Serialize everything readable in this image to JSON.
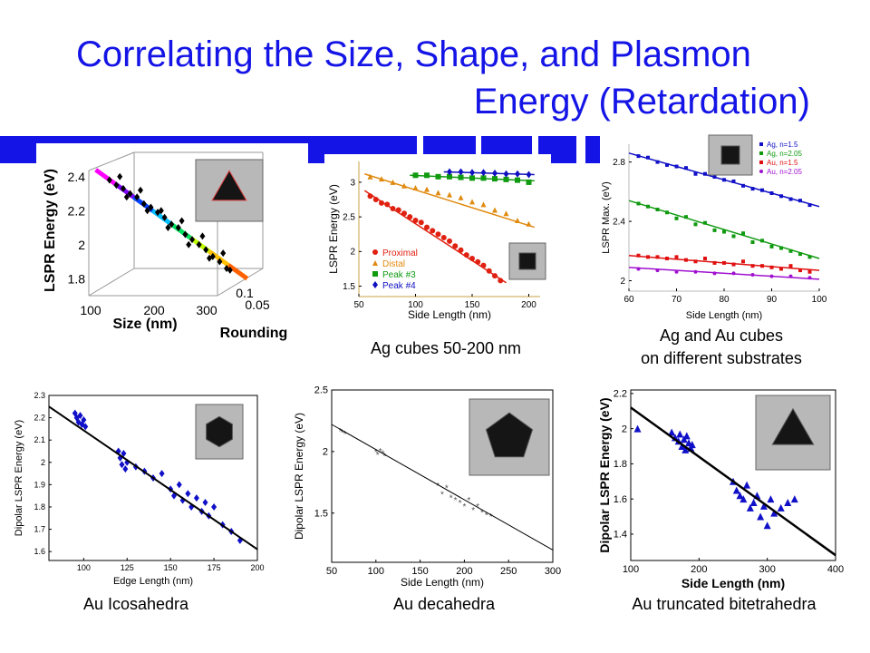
{
  "slide": {
    "title_line1": "Correlating the Size, Shape, and Plasmon",
    "title_line2": "Energy (Retardation)",
    "accent": "#1414e6"
  },
  "captions": {
    "ag_cubes": "Ag cubes 50-200 nm",
    "substrates_line1": "Ag and Au cubes",
    "substrates_line2": "on different substrates",
    "icosahedra": "Au Icosahedra",
    "decahedra": "Au decahedra",
    "bitetrahedra": "Au truncated bitetrahedra"
  },
  "chart_data": [
    {
      "id": "p1",
      "type": "scatter",
      "ylabel": "LSPR Energy (eV)",
      "xlabel": "Size (nm)",
      "zlabel": "Rounding",
      "xticks": [
        "100",
        "200",
        "300"
      ],
      "yticks": [
        "1.8",
        "2",
        "2.2",
        "2.4"
      ],
      "zticks": [
        "0.05",
        "0.1"
      ],
      "xlim": [
        100,
        350
      ],
      "ylim": [
        1.7,
        2.5
      ],
      "series": [
        {
          "name": "",
          "color": "#000000",
          "marker": "diamond",
          "x": [
            130,
            140,
            150,
            160,
            170,
            180,
            190,
            200,
            210,
            220,
            230,
            240,
            250,
            260,
            270,
            280,
            290,
            300,
            145,
            175,
            205,
            235,
            265,
            295,
            155,
            185,
            215,
            245,
            275,
            305
          ],
          "y": [
            2.38,
            2.35,
            2.33,
            2.3,
            2.28,
            2.24,
            2.22,
            2.19,
            2.16,
            2.12,
            2.1,
            2.06,
            2.03,
            2.0,
            1.97,
            1.93,
            1.9,
            1.86,
            2.4,
            2.32,
            2.2,
            2.14,
            2.05,
            1.95,
            2.28,
            2.2,
            2.1,
            2.0,
            1.92,
            1.85
          ]
        }
      ],
      "fit": {
        "x": [
          110,
          330
        ],
        "y": [
          2.44,
          1.8
        ]
      }
    },
    {
      "id": "p2",
      "type": "scatter",
      "ylabel": "LSPR Energy (eV)",
      "xlabel": "Side Length (nm)",
      "xticks": [
        50,
        100,
        150,
        200
      ],
      "yticks": [
        1.5,
        2,
        2.5,
        3
      ],
      "xlim": [
        50,
        210
      ],
      "ylim": [
        1.35,
        3.3
      ],
      "legend": {
        "placement": "bottom-left",
        "entries": [
          "Proximal",
          "Distal",
          "Peak #3",
          "Peak #4"
        ]
      },
      "series": [
        {
          "name": "Proximal",
          "color": "#e02010",
          "marker": "circle",
          "x": [
            60,
            65,
            70,
            75,
            80,
            85,
            90,
            95,
            100,
            105,
            110,
            115,
            120,
            125,
            130,
            135,
            140,
            145,
            150,
            155,
            160,
            165,
            170,
            175
          ],
          "y": [
            2.8,
            2.75,
            2.7,
            2.68,
            2.62,
            2.6,
            2.55,
            2.5,
            2.45,
            2.42,
            2.35,
            2.3,
            2.25,
            2.2,
            2.15,
            2.08,
            2.02,
            1.95,
            1.9,
            1.85,
            1.8,
            1.72,
            1.65,
            1.58
          ],
          "fit": {
            "x": [
              55,
              180
            ],
            "y": [
              2.88,
              1.55
            ]
          }
        },
        {
          "name": "Distal",
          "color": "#e08a10",
          "marker": "triangle",
          "x": [
            60,
            70,
            80,
            90,
            100,
            110,
            120,
            130,
            140,
            150,
            160,
            170,
            180,
            190,
            200
          ],
          "y": [
            3.08,
            3.05,
            3.0,
            2.95,
            2.92,
            2.9,
            2.85,
            2.82,
            2.78,
            2.72,
            2.68,
            2.6,
            2.55,
            2.45,
            2.4
          ],
          "fit": {
            "x": [
              55,
              205
            ],
            "y": [
              3.12,
              2.35
            ]
          }
        },
        {
          "name": "Peak #3",
          "color": "#109a10",
          "marker": "square",
          "x": [
            100,
            110,
            120,
            130,
            140,
            150,
            160,
            170,
            180,
            190,
            200
          ],
          "y": [
            3.1,
            3.1,
            3.08,
            3.08,
            3.07,
            3.06,
            3.06,
            3.05,
            3.04,
            3.03,
            3.0
          ],
          "fit": {
            "x": [
              95,
              205
            ],
            "y": [
              3.1,
              3.02
            ]
          }
        },
        {
          "name": "Peak #4",
          "color": "#1010c0",
          "marker": "diamond",
          "x": [
            130,
            140,
            150,
            160,
            170,
            180,
            190,
            200
          ],
          "y": [
            3.15,
            3.15,
            3.14,
            3.14,
            3.13,
            3.12,
            3.12,
            3.11
          ],
          "fit": {
            "x": [
              125,
              205
            ],
            "y": [
              3.15,
              3.11
            ]
          }
        }
      ]
    },
    {
      "id": "p3",
      "type": "scatter",
      "ylabel": "LSPR Max. (eV)",
      "xlabel": "Side Length (nm)",
      "xticks": [
        60,
        70,
        80,
        90,
        100
      ],
      "yticks": [
        2,
        2.4,
        2.8
      ],
      "xlim": [
        60,
        100
      ],
      "ylim": [
        1.93,
        2.92
      ],
      "legend": {
        "placement": "top-right",
        "entries": [
          "Ag, n=1.5",
          "Ag, n=2.05",
          "Au, n=1.5",
          "Au, n=2.05"
        ]
      },
      "series": [
        {
          "name": "Ag, n=1.5",
          "color": "#1010c8",
          "marker": "square",
          "x": [
            62,
            64,
            66,
            68,
            70,
            72,
            74,
            76,
            78,
            80,
            82,
            84,
            86,
            88,
            90,
            92,
            94,
            96,
            98
          ],
          "y": [
            2.84,
            2.83,
            2.8,
            2.78,
            2.77,
            2.76,
            2.72,
            2.72,
            2.7,
            2.68,
            2.67,
            2.64,
            2.62,
            2.61,
            2.59,
            2.57,
            2.55,
            2.54,
            2.51
          ],
          "fit": {
            "x": [
              60,
              100
            ],
            "y": [
              2.86,
              2.5
            ]
          }
        },
        {
          "name": "Ag, n=2.05",
          "color": "#109a10",
          "marker": "square",
          "x": [
            62,
            64,
            66,
            68,
            70,
            72,
            74,
            76,
            78,
            80,
            82,
            84,
            86,
            88,
            90,
            92,
            94,
            96,
            98
          ],
          "y": [
            2.52,
            2.5,
            2.48,
            2.46,
            2.42,
            2.43,
            2.38,
            2.39,
            2.34,
            2.33,
            2.3,
            2.32,
            2.26,
            2.27,
            2.23,
            2.22,
            2.2,
            2.18,
            2.16
          ],
          "fit": {
            "x": [
              60,
              100
            ],
            "y": [
              2.54,
              2.15
            ]
          }
        },
        {
          "name": "Au, n=1.5",
          "color": "#e01010",
          "marker": "square",
          "x": [
            62,
            64,
            66,
            68,
            70,
            72,
            74,
            76,
            78,
            80,
            82,
            84,
            86,
            88,
            90,
            92,
            94,
            96,
            98
          ],
          "y": [
            2.17,
            2.16,
            2.16,
            2.15,
            2.16,
            2.14,
            2.13,
            2.15,
            2.12,
            2.12,
            2.11,
            2.13,
            2.1,
            2.1,
            2.09,
            2.08,
            2.1,
            2.07,
            2.06
          ],
          "fit": {
            "x": [
              60,
              100
            ],
            "y": [
              2.17,
              2.07
            ]
          }
        },
        {
          "name": "Au, n=2.05",
          "color": "#a010d0",
          "marker": "circle",
          "x": [
            62,
            66,
            70,
            74,
            78,
            82,
            86,
            90,
            94,
            98
          ],
          "y": [
            2.08,
            2.07,
            2.06,
            2.06,
            2.05,
            2.05,
            2.04,
            2.03,
            2.03,
            2.02
          ],
          "fit": {
            "x": [
              60,
              100
            ],
            "y": [
              2.09,
              2.01
            ]
          }
        }
      ]
    },
    {
      "id": "p4",
      "type": "scatter",
      "ylabel": "Dipolar LSPR Energy (eV)",
      "xlabel": "Edge Length (nm)",
      "xticks": [
        100,
        125,
        150,
        175,
        200
      ],
      "yticks": [
        1.6,
        1.7,
        1.8,
        1.9,
        2,
        2.1,
        2.2,
        2.3
      ],
      "xlim": [
        80,
        200
      ],
      "ylim": [
        1.56,
        2.3
      ],
      "series": [
        {
          "name": "",
          "color": "#1010c8",
          "marker": "diamond",
          "x": [
            95,
            96,
            97,
            98,
            99,
            100,
            101,
            120,
            121,
            122,
            123,
            124,
            125,
            130,
            135,
            140,
            145,
            150,
            152,
            155,
            157,
            160,
            162,
            165,
            168,
            170,
            172,
            175,
            180,
            185,
            190
          ],
          "y": [
            2.22,
            2.2,
            2.18,
            2.21,
            2.17,
            2.19,
            2.16,
            2.05,
            2.02,
            1.99,
            2.04,
            1.97,
            2.0,
            1.98,
            1.96,
            1.93,
            1.95,
            1.88,
            1.85,
            1.9,
            1.83,
            1.86,
            1.8,
            1.84,
            1.78,
            1.82,
            1.76,
            1.8,
            1.72,
            1.69,
            1.65
          ]
        }
      ],
      "fit": {
        "x": [
          80,
          200
        ],
        "y": [
          2.25,
          1.61
        ]
      }
    },
    {
      "id": "p5",
      "type": "scatter",
      "ylabel": "Dipolar LSPR Energy (eV)",
      "xlabel": "Side Length (nm)",
      "xticks": [
        50,
        100,
        150,
        200,
        250,
        300
      ],
      "yticks": [
        1.5,
        2,
        2.5
      ],
      "xlim": [
        50,
        300
      ],
      "ylim": [
        1.1,
        2.5
      ],
      "series": [
        {
          "name": "",
          "color": "#555555",
          "marker": "star",
          "x": [
            60,
            62,
            65,
            100,
            102,
            105,
            108,
            110,
            170,
            175,
            180,
            185,
            190,
            195,
            200,
            205,
            210,
            215,
            220,
            225,
            230
          ],
          "y": [
            2.16,
            2.15,
            2.14,
            1.99,
            1.97,
            2.0,
            1.98,
            1.96,
            1.72,
            1.65,
            1.7,
            1.62,
            1.6,
            1.58,
            1.55,
            1.6,
            1.52,
            1.55,
            1.5,
            1.48,
            1.47
          ]
        }
      ],
      "fit": {
        "x": [
          50,
          300
        ],
        "y": [
          2.22,
          1.2
        ]
      }
    },
    {
      "id": "p6",
      "type": "scatter",
      "ylabel": "Dipolar LSPR Energy (eV)",
      "xlabel": "Side Length (nm)",
      "xticks": [
        100,
        200,
        300,
        400
      ],
      "yticks": [
        1.4,
        1.6,
        1.8,
        2,
        2.2
      ],
      "xlim": [
        100,
        400
      ],
      "ylim": [
        1.25,
        2.22
      ],
      "series": [
        {
          "name": "",
          "color": "#1010c8",
          "marker": "triangle",
          "x": [
            110,
            160,
            165,
            170,
            172,
            175,
            178,
            180,
            182,
            185,
            188,
            190,
            250,
            255,
            260,
            265,
            270,
            275,
            280,
            285,
            290,
            295,
            300,
            305,
            310,
            320,
            330,
            340
          ],
          "y": [
            2.0,
            1.98,
            1.95,
            1.93,
            1.97,
            1.9,
            1.94,
            1.88,
            1.96,
            1.92,
            1.89,
            1.91,
            1.7,
            1.65,
            1.62,
            1.6,
            1.68,
            1.55,
            1.58,
            1.62,
            1.5,
            1.56,
            1.45,
            1.6,
            1.52,
            1.55,
            1.58,
            1.6
          ]
        }
      ],
      "fit": {
        "x": [
          100,
          400
        ],
        "y": [
          2.12,
          1.28
        ]
      }
    }
  ]
}
